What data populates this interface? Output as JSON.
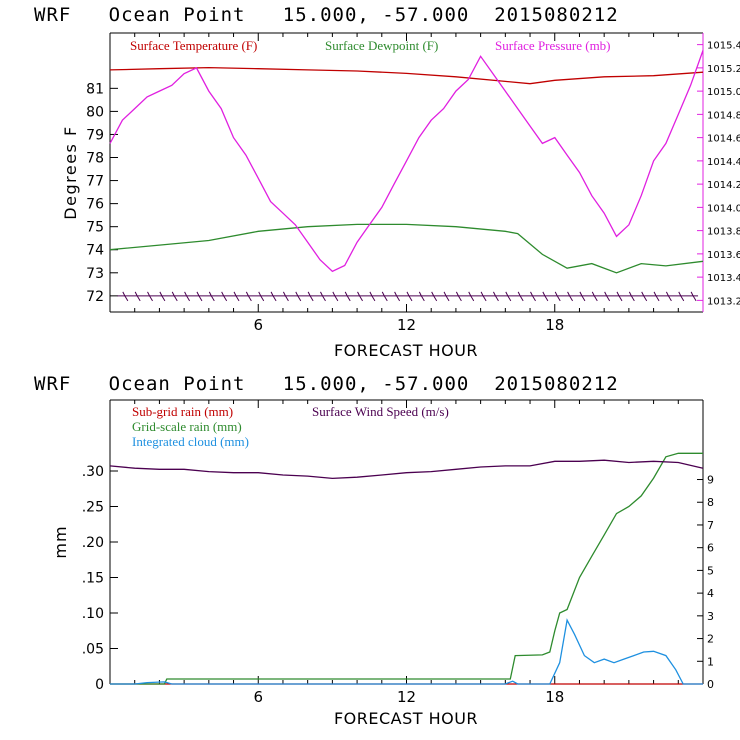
{
  "chart_data": [
    {
      "type": "line",
      "title": "WRF   Ocean Point   15.000, -57.000  2015080212",
      "xlabel": "FORECAST HOUR",
      "ylabel": "Degrees F",
      "xlim": [
        0,
        24
      ],
      "ylim": [
        71.3,
        83.4
      ],
      "y2lim": [
        1013.1,
        1015.5
      ],
      "x_ticks": [
        6,
        12,
        18
      ],
      "y_ticks": [
        72,
        73,
        74,
        75,
        76,
        77,
        78,
        79,
        80,
        81
      ],
      "y2_ticks": [
        1013.2,
        1013.4,
        1013.6,
        1013.8,
        1014.0,
        1014.2,
        1014.4,
        1014.6,
        1014.8,
        1015.0,
        1015.2,
        1015.4
      ],
      "legend": "top",
      "series": [
        {
          "name": "Surface Temperature (F)",
          "color": "#c00000",
          "axis": "left",
          "x": [
            0,
            2,
            4,
            6,
            8,
            10,
            12,
            14,
            16,
            17,
            18,
            20,
            22,
            24
          ],
          "y": [
            81.8,
            81.85,
            81.9,
            81.85,
            81.8,
            81.75,
            81.65,
            81.5,
            81.3,
            81.2,
            81.35,
            81.5,
            81.55,
            81.7
          ]
        },
        {
          "name": "Surface Dewpoint (F)",
          "color": "#2e8b2e",
          "axis": "left",
          "x": [
            0,
            2,
            4,
            6,
            8,
            10,
            12,
            14,
            16,
            16.5,
            17.5,
            18.5,
            19.5,
            20.5,
            21.5,
            22.5,
            24
          ],
          "y": [
            74.0,
            74.2,
            74.4,
            74.8,
            75.0,
            75.1,
            75.1,
            75.0,
            74.8,
            74.7,
            73.8,
            73.2,
            73.4,
            73.0,
            73.4,
            73.3,
            73.5
          ]
        },
        {
          "name": "Surface Pressure (mb)",
          "color": "#e020e0",
          "axis": "right",
          "x": [
            0,
            0.5,
            1,
            1.5,
            2,
            2.5,
            3,
            3.5,
            4,
            4.5,
            5,
            5.5,
            6,
            6.5,
            7,
            7.5,
            8,
            8.5,
            9,
            9.5,
            10,
            10.5,
            11,
            11.5,
            12,
            12.5,
            13,
            13.5,
            14,
            14.5,
            15,
            15.5,
            16,
            16.5,
            17,
            17.5,
            18,
            18.5,
            19,
            19.5,
            20,
            20.5,
            21,
            21.5,
            22,
            22.5,
            23,
            23.5,
            24
          ],
          "y": [
            1014.55,
            1014.75,
            1014.85,
            1014.95,
            1015.0,
            1015.05,
            1015.15,
            1015.2,
            1015.0,
            1014.85,
            1014.6,
            1014.45,
            1014.25,
            1014.05,
            1013.95,
            1013.85,
            1013.7,
            1013.55,
            1013.45,
            1013.5,
            1013.7,
            1013.85,
            1014.0,
            1014.2,
            1014.4,
            1014.6,
            1014.75,
            1014.85,
            1015.0,
            1015.1,
            1015.3,
            1015.15,
            1015.0,
            1014.85,
            1014.7,
            1014.55,
            1014.6,
            1014.45,
            1014.3,
            1014.1,
            1013.95,
            1013.75,
            1013.85,
            1014.1,
            1014.4,
            1014.55,
            1014.8,
            1015.05,
            1015.35
          ]
        }
      ],
      "annotations": [
        "wind barbs along 72 F line"
      ]
    },
    {
      "type": "line",
      "title": "WRF   Ocean Point   15.000, -57.000  2015080212",
      "xlabel": "FORECAST HOUR",
      "ylabel": "mm",
      "xlim": [
        0,
        24
      ],
      "ylim": [
        0,
        0.4
      ],
      "y2lim": [
        0,
        12.5
      ],
      "x_ticks": [
        6,
        12,
        18
      ],
      "y_ticks": [
        0,
        0.05,
        0.1,
        0.15,
        0.2,
        0.25,
        0.3
      ],
      "y_tick_labels": [
        "0",
        ".05",
        ".10",
        ".15",
        ".20",
        ".25",
        ".30"
      ],
      "y2_ticks": [
        0,
        1,
        2,
        3,
        4,
        5,
        6,
        7,
        8,
        9
      ],
      "legend": "top-left",
      "series": [
        {
          "name": "Sub-grid rain (mm)",
          "color": "#c00000",
          "axis": "left",
          "x": [
            0,
            24
          ],
          "y": [
            0,
            0
          ]
        },
        {
          "name": "Grid-scale rain (mm)",
          "color": "#2e8b2e",
          "axis": "left",
          "x": [
            0,
            2.2,
            2.3,
            16.2,
            16.4,
            17.5,
            17.8,
            18.0,
            18.2,
            18.5,
            19.0,
            19.5,
            20.0,
            20.5,
            21.0,
            21.5,
            22.0,
            22.5,
            23.0,
            24.0
          ],
          "y": [
            0,
            0,
            0.007,
            0.007,
            0.04,
            0.041,
            0.045,
            0.075,
            0.1,
            0.105,
            0.15,
            0.18,
            0.21,
            0.24,
            0.25,
            0.265,
            0.29,
            0.32,
            0.325,
            0.325
          ]
        },
        {
          "name": "Integrated cloud (mm)",
          "color": "#1e90e0",
          "axis": "left",
          "x": [
            0,
            1.0,
            1.5,
            2.2,
            2.5,
            16.0,
            16.3,
            16.5,
            17.8,
            18.2,
            18.5,
            18.8,
            19.2,
            19.6,
            20.0,
            20.4,
            20.8,
            21.2,
            21.6,
            22.0,
            22.5,
            22.9,
            23.2,
            24.0
          ],
          "y": [
            0,
            0,
            0.002,
            0.003,
            0,
            0,
            0.004,
            0,
            0,
            0.03,
            0.09,
            0.07,
            0.04,
            0.03,
            0.035,
            0.03,
            0.035,
            0.04,
            0.045,
            0.046,
            0.04,
            0.02,
            0,
            0
          ]
        },
        {
          "name": "Surface Wind Speed (m/s)",
          "color": "#4b0050",
          "axis": "right",
          "x": [
            0,
            1,
            2,
            3,
            4,
            5,
            6,
            7,
            8,
            9,
            10,
            11,
            12,
            13,
            14,
            15,
            16,
            17,
            18,
            19,
            20,
            21,
            22,
            23,
            24
          ],
          "y": [
            9.6,
            9.5,
            9.45,
            9.45,
            9.35,
            9.3,
            9.3,
            9.2,
            9.15,
            9.05,
            9.1,
            9.2,
            9.3,
            9.35,
            9.45,
            9.55,
            9.6,
            9.6,
            9.8,
            9.8,
            9.85,
            9.75,
            9.8,
            9.75,
            9.5
          ]
        }
      ]
    }
  ]
}
